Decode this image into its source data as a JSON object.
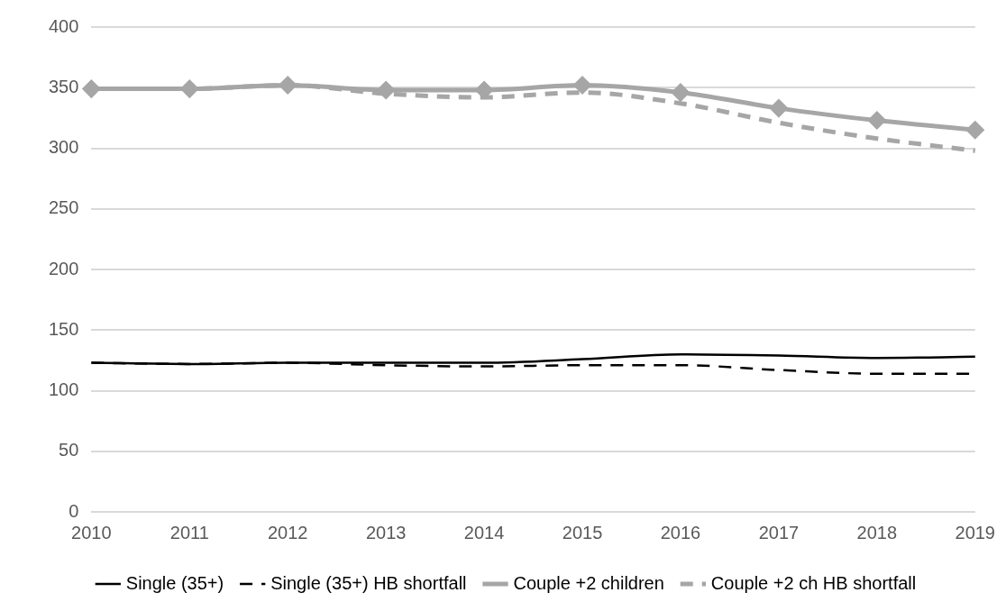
{
  "chart_data": {
    "type": "line",
    "categories": [
      "2010",
      "2011",
      "2012",
      "2013",
      "2014",
      "2015",
      "2016",
      "2017",
      "2018",
      "2019"
    ],
    "series": [
      {
        "name": "Single (35+)",
        "color": "#000000",
        "line_style": "solid",
        "marker": "none",
        "values": [
          123,
          122,
          123,
          123,
          123,
          126,
          130,
          129,
          127,
          128
        ]
      },
      {
        "name": "Single (35+) HB shortfall",
        "color": "#000000",
        "line_style": "dashed",
        "marker": "none",
        "values": [
          123,
          122,
          123,
          121,
          120,
          121,
          121,
          117,
          114,
          114
        ]
      },
      {
        "name": "Couple +2 children",
        "color": "#a6a6a6",
        "line_style": "solid",
        "marker": "diamond",
        "values": [
          349,
          349,
          352,
          348,
          348,
          352,
          346,
          333,
          323,
          315
        ]
      },
      {
        "name": "Couple +2 ch HB shortfall",
        "color": "#a6a6a6",
        "line_style": "dashed",
        "marker": "none",
        "values": [
          349,
          349,
          352,
          345,
          342,
          346,
          337,
          321,
          308,
          298
        ]
      }
    ],
    "ylim": [
      0,
      400
    ],
    "yticks": [
      0,
      50,
      100,
      150,
      200,
      250,
      300,
      350,
      400
    ],
    "grid": "y",
    "legend": "bottom"
  }
}
